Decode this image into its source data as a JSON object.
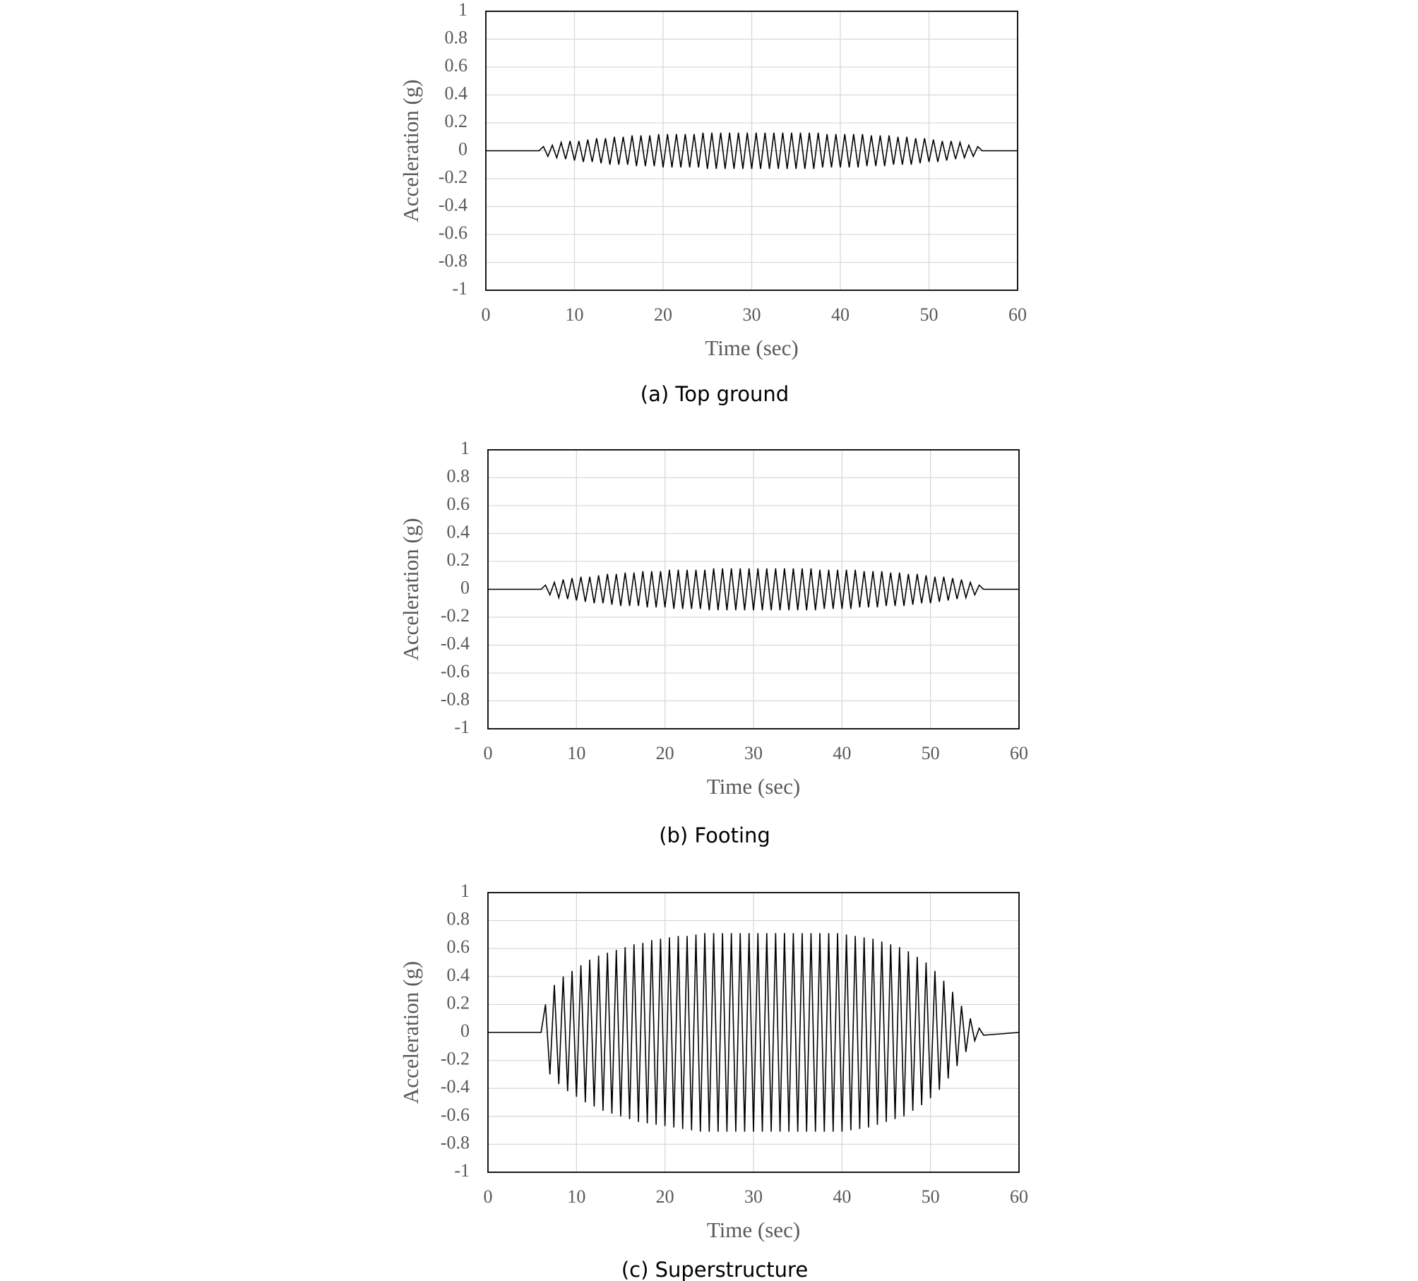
{
  "chart_data": [
    {
      "type": "line",
      "title": "(a) Top ground",
      "x_label": "Time (sec)",
      "y_label": "Acceleration (g)",
      "color": "#000000",
      "grid": true,
      "xlim": [
        0,
        60
      ],
      "xticks": [
        0,
        10,
        20,
        30,
        40,
        50,
        60
      ],
      "ylim": [
        -1,
        1
      ],
      "yticks": [
        1,
        0.8,
        0.6,
        0.4,
        0.2,
        0,
        -0.2,
        -0.4,
        -0.6,
        -0.8,
        -1
      ],
      "x": [
        0,
        6,
        6.5,
        7,
        7.5,
        8,
        8.5,
        9,
        9.5,
        10,
        10.5,
        11,
        11.5,
        12,
        12.5,
        13,
        13.5,
        14,
        14.5,
        15,
        15.5,
        16,
        16.5,
        17,
        17.5,
        18,
        18.5,
        19,
        19.5,
        20,
        20.5,
        21,
        21.5,
        22,
        22.5,
        23,
        23.5,
        24,
        24.5,
        25,
        25.5,
        26,
        26.5,
        27,
        27.5,
        28,
        28.5,
        29,
        29.5,
        30,
        30.5,
        31,
        31.5,
        32,
        32.5,
        33,
        33.5,
        34,
        34.5,
        35,
        35.5,
        36,
        36.5,
        37,
        37.5,
        38,
        38.5,
        39,
        39.5,
        40,
        40.5,
        41,
        41.5,
        42,
        42.5,
        43,
        43.5,
        44,
        44.5,
        45,
        45.5,
        46,
        46.5,
        47,
        47.5,
        48,
        48.5,
        49,
        49.5,
        50,
        50.5,
        51,
        51.5,
        52,
        52.5,
        53,
        53.5,
        54,
        54.5,
        55,
        55.5,
        56,
        60
      ],
      "values": [
        0,
        0,
        0.03,
        -0.04,
        0.04,
        -0.05,
        0.06,
        -0.06,
        0.07,
        -0.07,
        0.07,
        -0.08,
        0.08,
        -0.08,
        0.09,
        -0.09,
        0.09,
        -0.1,
        0.1,
        -0.1,
        0.1,
        -0.1,
        0.11,
        -0.11,
        0.11,
        -0.11,
        0.11,
        -0.11,
        0.12,
        -0.12,
        0.12,
        -0.12,
        0.12,
        -0.12,
        0.12,
        -0.12,
        0.12,
        -0.12,
        0.13,
        -0.13,
        0.13,
        -0.13,
        0.13,
        -0.13,
        0.13,
        -0.13,
        0.13,
        -0.13,
        0.13,
        -0.13,
        0.13,
        -0.13,
        0.13,
        -0.13,
        0.13,
        -0.13,
        0.13,
        -0.13,
        0.13,
        -0.13,
        0.13,
        -0.13,
        0.13,
        -0.13,
        0.13,
        -0.12,
        0.12,
        -0.12,
        0.12,
        -0.12,
        0.12,
        -0.12,
        0.12,
        -0.12,
        0.12,
        -0.11,
        0.11,
        -0.11,
        0.11,
        -0.11,
        0.11,
        -0.1,
        0.1,
        -0.1,
        0.1,
        -0.1,
        0.09,
        -0.09,
        0.09,
        -0.08,
        0.08,
        -0.08,
        0.07,
        -0.07,
        0.07,
        -0.06,
        0.06,
        -0.05,
        0.04,
        -0.04,
        0.03,
        0,
        0
      ]
    },
    {
      "type": "line",
      "title": "(b) Footing",
      "x_label": "Time (sec)",
      "y_label": "Acceleration (g)",
      "color": "#000000",
      "grid": true,
      "xlim": [
        0,
        60
      ],
      "xticks": [
        0,
        10,
        20,
        30,
        40,
        50,
        60
      ],
      "ylim": [
        -1,
        1
      ],
      "yticks": [
        1,
        0.8,
        0.6,
        0.4,
        0.2,
        0,
        -0.2,
        -0.4,
        -0.6,
        -0.8,
        -1
      ],
      "x": [
        0,
        6,
        6.5,
        7,
        7.5,
        8,
        8.5,
        9,
        9.5,
        10,
        10.5,
        11,
        11.5,
        12,
        12.5,
        13,
        13.5,
        14,
        14.5,
        15,
        15.5,
        16,
        16.5,
        17,
        17.5,
        18,
        18.5,
        19,
        19.5,
        20,
        20.5,
        21,
        21.5,
        22,
        22.5,
        23,
        23.5,
        24,
        24.5,
        25,
        25.5,
        26,
        26.5,
        27,
        27.5,
        28,
        28.5,
        29,
        29.5,
        30,
        30.5,
        31,
        31.5,
        32,
        32.5,
        33,
        33.5,
        34,
        34.5,
        35,
        35.5,
        36,
        36.5,
        37,
        37.5,
        38,
        38.5,
        39,
        39.5,
        40,
        40.5,
        41,
        41.5,
        42,
        42.5,
        43,
        43.5,
        44,
        44.5,
        45,
        45.5,
        46,
        46.5,
        47,
        47.5,
        48,
        48.5,
        49,
        49.5,
        50,
        50.5,
        51,
        51.5,
        52,
        52.5,
        53,
        53.5,
        54,
        54.5,
        55,
        55.5,
        56,
        60
      ],
      "values": [
        0,
        0,
        0.03,
        -0.04,
        0.05,
        -0.06,
        0.07,
        -0.07,
        0.08,
        -0.08,
        0.09,
        -0.09,
        0.09,
        -0.1,
        0.1,
        -0.1,
        0.11,
        -0.11,
        0.11,
        -0.12,
        0.12,
        -0.12,
        0.12,
        -0.12,
        0.13,
        -0.13,
        0.13,
        -0.13,
        0.13,
        -0.13,
        0.14,
        -0.14,
        0.14,
        -0.14,
        0.14,
        -0.14,
        0.14,
        -0.14,
        0.14,
        -0.15,
        0.15,
        -0.15,
        0.15,
        -0.15,
        0.15,
        -0.15,
        0.15,
        -0.15,
        0.15,
        -0.15,
        0.15,
        -0.15,
        0.15,
        -0.15,
        0.15,
        -0.15,
        0.15,
        -0.15,
        0.15,
        -0.15,
        0.15,
        -0.15,
        0.15,
        -0.15,
        0.14,
        -0.14,
        0.14,
        -0.14,
        0.14,
        -0.14,
        0.14,
        -0.14,
        0.14,
        -0.13,
        0.13,
        -0.13,
        0.13,
        -0.13,
        0.13,
        -0.12,
        0.12,
        -0.12,
        0.12,
        -0.12,
        0.11,
        -0.11,
        0.11,
        -0.1,
        0.1,
        -0.1,
        0.09,
        -0.09,
        0.09,
        -0.08,
        0.08,
        -0.07,
        0.07,
        -0.06,
        0.05,
        -0.04,
        0.03,
        0,
        0
      ]
    },
    {
      "type": "line",
      "title": "(c) Superstructure",
      "x_label": "Time (sec)",
      "y_label": "Acceleration (g)",
      "color": "#000000",
      "grid": true,
      "xlim": [
        0,
        60
      ],
      "xticks": [
        0,
        10,
        20,
        30,
        40,
        50,
        60
      ],
      "ylim": [
        -1,
        1
      ],
      "yticks": [
        1,
        0.8,
        0.6,
        0.4,
        0.2,
        0,
        -0.2,
        -0.4,
        -0.6,
        -0.8,
        -1
      ],
      "x": [
        0,
        6,
        6.5,
        7,
        7.5,
        8,
        8.5,
        9,
        9.5,
        10,
        10.5,
        11,
        11.5,
        12,
        12.5,
        13,
        13.5,
        14,
        14.5,
        15,
        15.5,
        16,
        16.5,
        17,
        17.5,
        18,
        18.5,
        19,
        19.5,
        20,
        20.5,
        21,
        21.5,
        22,
        22.5,
        23,
        23.5,
        24,
        24.5,
        25,
        25.5,
        26,
        26.5,
        27,
        27.5,
        28,
        28.5,
        29,
        29.5,
        30,
        30.5,
        31,
        31.5,
        32,
        32.5,
        33,
        33.5,
        34,
        34.5,
        35,
        35.5,
        36,
        36.5,
        37,
        37.5,
        38,
        38.5,
        39,
        39.5,
        40,
        40.5,
        41,
        41.5,
        42,
        42.5,
        43,
        43.5,
        44,
        44.5,
        45,
        45.5,
        46,
        46.5,
        47,
        47.5,
        48,
        48.5,
        49,
        49.5,
        50,
        50.5,
        51,
        51.5,
        52,
        52.5,
        53,
        53.5,
        54,
        54.5,
        55,
        55.5,
        56,
        60
      ],
      "values": [
        0,
        0,
        0.2,
        -0.3,
        0.34,
        -0.37,
        0.4,
        -0.42,
        0.44,
        -0.46,
        0.48,
        -0.5,
        0.52,
        -0.53,
        0.55,
        -0.56,
        0.57,
        -0.58,
        0.59,
        -0.6,
        0.61,
        -0.62,
        0.63,
        -0.64,
        0.64,
        -0.65,
        0.66,
        -0.66,
        0.67,
        -0.67,
        0.68,
        -0.68,
        0.69,
        -0.69,
        0.69,
        -0.7,
        0.7,
        -0.71,
        0.71,
        -0.71,
        0.71,
        -0.71,
        0.71,
        -0.71,
        0.71,
        -0.71,
        0.71,
        -0.71,
        0.71,
        -0.71,
        0.71,
        -0.71,
        0.71,
        -0.71,
        0.71,
        -0.71,
        0.71,
        -0.71,
        0.71,
        -0.71,
        0.71,
        -0.71,
        0.71,
        -0.71,
        0.71,
        -0.71,
        0.71,
        -0.71,
        0.71,
        -0.71,
        0.7,
        -0.7,
        0.69,
        -0.69,
        0.68,
        -0.68,
        0.67,
        -0.66,
        0.65,
        -0.64,
        0.63,
        -0.62,
        0.61,
        -0.6,
        0.58,
        -0.56,
        0.54,
        -0.52,
        0.5,
        -0.47,
        0.44,
        -0.41,
        0.37,
        -0.33,
        0.29,
        -0.24,
        0.19,
        -0.14,
        0.1,
        -0.06,
        0.03,
        -0.02,
        0
      ]
    }
  ]
}
